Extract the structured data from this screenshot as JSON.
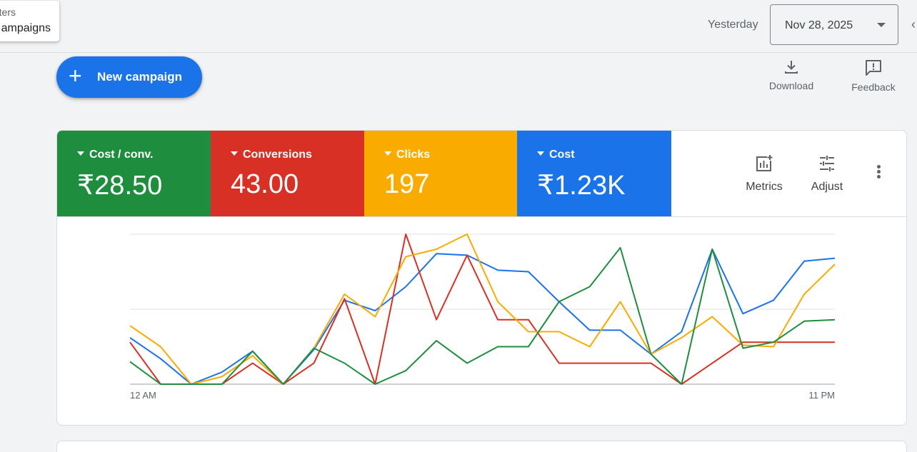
{
  "tooltip": {
    "line1": "ters)",
    "line2": "ampaigns"
  },
  "date_range": {
    "label": "Yesterday",
    "value": "Nov 28, 2025"
  },
  "toolbar": {
    "new_campaign_label": "New campaign",
    "download_label": "Download",
    "feedback_label": "Feedback"
  },
  "metrics": [
    {
      "name": "Cost / conv.",
      "value": "₹28.50",
      "color": "#1e8e3e"
    },
    {
      "name": "Conversions",
      "value": "43.00",
      "color": "#d93025"
    },
    {
      "name": "Clicks",
      "value": "197",
      "color": "#f9ab00"
    },
    {
      "name": "Cost",
      "value": "₹1.23K",
      "color": "#1a73e8"
    }
  ],
  "card_tools": {
    "metrics_label": "Metrics",
    "adjust_label": "Adjust"
  },
  "chart_data": {
    "type": "line",
    "x_start_label": "12 AM",
    "x_end_label": "11 PM",
    "x": [
      "0",
      "1",
      "2",
      "3",
      "4",
      "5",
      "6",
      "7",
      "8",
      "9",
      "10",
      "11",
      "12",
      "13",
      "14",
      "15",
      "16",
      "17",
      "18",
      "19",
      "20",
      "21",
      "22",
      "23"
    ],
    "grid": true,
    "y_max": 100,
    "series": [
      {
        "color": "#1a73e8",
        "values": [
          31,
          17,
          0,
          8,
          22,
          0,
          23,
          56,
          49,
          65,
          87,
          86,
          76,
          75,
          55,
          36,
          36,
          20,
          35,
          90,
          47,
          56,
          82,
          84
        ]
      },
      {
        "color": "#d93025",
        "values": [
          28,
          0,
          0,
          0,
          14,
          0,
          14,
          57,
          0,
          100,
          43,
          86,
          43,
          43,
          14,
          14,
          14,
          14,
          0,
          14,
          28,
          28,
          28,
          28
        ]
      },
      {
        "color": "#f9ab00",
        "values": [
          39,
          25,
          0,
          5,
          19,
          0,
          24,
          60,
          45,
          85,
          90,
          100,
          55,
          35,
          35,
          25,
          55,
          20,
          31,
          45,
          26,
          25,
          60,
          80
        ]
      },
      {
        "color": "#1e8e3e",
        "values": [
          15,
          0,
          0,
          0,
          22,
          0,
          24,
          14,
          0,
          9,
          29,
          14,
          25,
          25,
          55,
          65,
          91,
          20,
          0,
          90,
          24,
          28,
          42,
          43
        ]
      }
    ]
  }
}
